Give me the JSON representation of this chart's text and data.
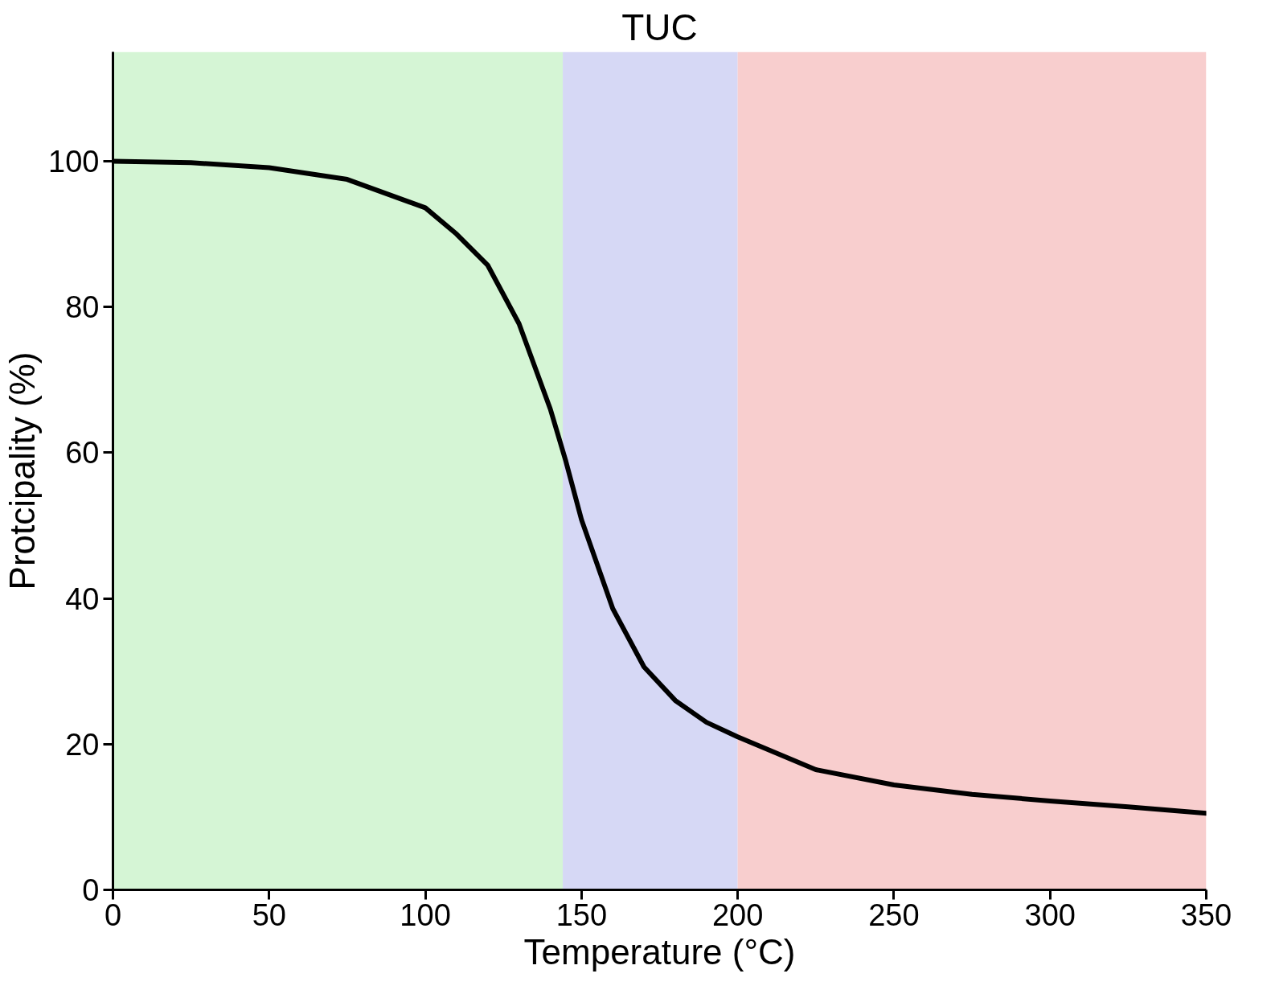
{
  "chart_data": {
    "type": "line",
    "title": "TUC",
    "xlabel": "Temperature (°C)",
    "ylabel": "Protcipality (%)",
    "x": [
      0,
      25,
      50,
      75,
      100,
      110,
      120,
      130,
      140,
      145,
      150,
      160,
      170,
      180,
      190,
      200,
      225,
      250,
      275,
      300,
      325,
      350
    ],
    "series": [
      {
        "color": "#000000",
        "values": [
          100,
          99.8,
          99.1,
          97.5,
          93.6,
          90,
          85.7,
          77.7,
          66,
          58.8,
          50.8,
          38.6,
          30.6,
          26,
          23,
          21,
          16.5,
          14.4,
          13.1,
          12.2,
          11.4,
          10.5
        ]
      }
    ],
    "xlim": [
      0,
      350
    ],
    "ylim": [
      0,
      115
    ],
    "xticks": [
      0,
      50,
      100,
      150,
      200,
      250,
      300,
      350
    ],
    "yticks": [
      0,
      20,
      40,
      60,
      80,
      100
    ],
    "bands": [
      {
        "axis": "x",
        "from": 0,
        "to": 144,
        "color": "#d5f5d5"
      },
      {
        "axis": "x",
        "from": 144,
        "to": 200,
        "color": "#d6d8f5"
      },
      {
        "axis": "x",
        "from": 200,
        "to": 350,
        "color": "#f8cece"
      }
    ],
    "grid": false,
    "marker": "none",
    "line_style": "solid"
  }
}
